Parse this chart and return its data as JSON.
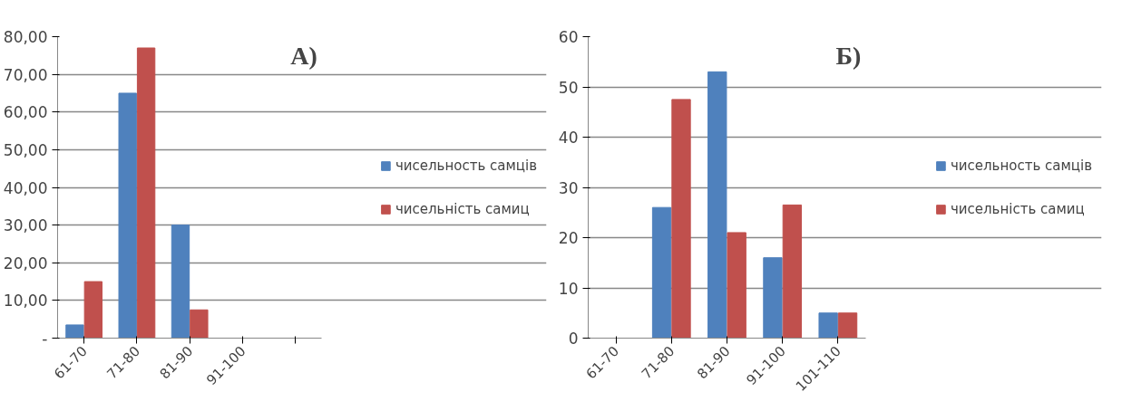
{
  "chart_data": [
    {
      "type": "bar",
      "annotations": [
        "А)"
      ],
      "categories": [
        "61-70",
        "71-80",
        "81-90",
        "91-100",
        null
      ],
      "series": [
        {
          "name": "чисельность самців",
          "color": "#4f81bd",
          "values": [
            3.5,
            65,
            30,
            0,
            null
          ]
        },
        {
          "name": "чисельність самиц",
          "color": "#c0504d",
          "values": [
            15,
            77,
            7.5,
            0,
            null
          ]
        }
      ],
      "ylim": [
        0,
        80
      ],
      "yticks": [
        {
          "value": 0,
          "label": "-"
        },
        {
          "value": 10,
          "label": "10,00"
        },
        {
          "value": 20,
          "label": "20,00"
        },
        {
          "value": 30,
          "label": "30,00"
        },
        {
          "value": 40,
          "label": "40,00"
        },
        {
          "value": 50,
          "label": "50,00"
        },
        {
          "value": 60,
          "label": "60,00"
        },
        {
          "value": 70,
          "label": "70,00"
        },
        {
          "value": 80,
          "label": "80,00"
        }
      ],
      "grid": "y",
      "legend": "right"
    },
    {
      "type": "bar",
      "annotations": [
        "Б)"
      ],
      "categories": [
        "61-70",
        "71-80",
        "81-90",
        "91-100",
        "101-110"
      ],
      "series": [
        {
          "name": "чисельность самців",
          "color": "#4f81bd",
          "values": [
            0,
            26,
            53,
            16,
            5
          ]
        },
        {
          "name": "чисельність самиц",
          "color": "#c0504d",
          "values": [
            0,
            47.5,
            21,
            26.5,
            5
          ]
        }
      ],
      "ylim": [
        0,
        60
      ],
      "yticks": [
        0,
        10,
        20,
        30,
        40,
        50,
        60
      ],
      "grid": "y",
      "legend": "right"
    }
  ]
}
